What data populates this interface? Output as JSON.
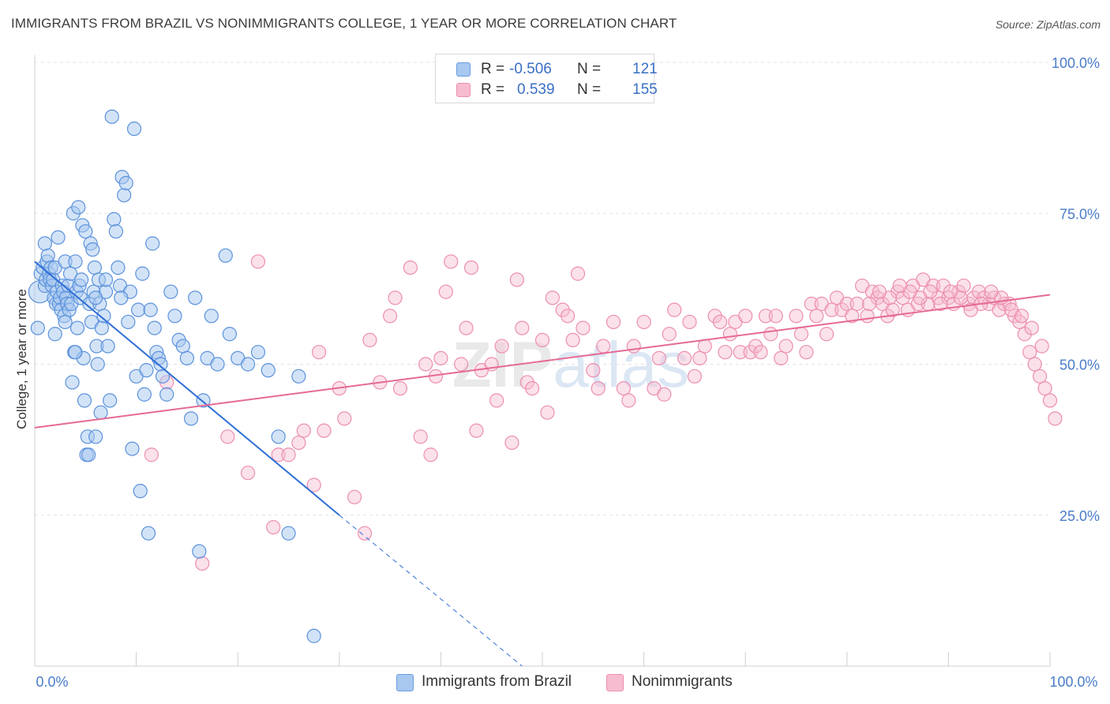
{
  "title": "IMMIGRANTS FROM BRAZIL VS NONIMMIGRANTS COLLEGE, 1 YEAR OR MORE CORRELATION CHART",
  "source": "Source: ZipAtlas.com",
  "watermark": "ZIPatlas",
  "legend_top": {
    "rows": [
      {
        "r_label": "R =",
        "r_value": "-0.506",
        "n_label": "N =",
        "n_value": "121",
        "color": "#a8c8f0",
        "border": "#6a9ee0"
      },
      {
        "r_label": "R =",
        "r_value": "0.539",
        "n_label": "N =",
        "n_value": "155",
        "color": "#f7bcd0",
        "border": "#ec8fb0"
      }
    ]
  },
  "legend_bottom": [
    {
      "label": "Immigrants from Brazil",
      "color": "#a8c8f0",
      "border": "#6a9ee0"
    },
    {
      "label": "Nonimmigrants",
      "color": "#f7bcd0",
      "border": "#ec8fb0"
    }
  ],
  "chart_data": {
    "type": "scatter",
    "xlabel": "",
    "ylabel": "College, 1 year or more",
    "xlim": [
      0,
      100
    ],
    "ylim": [
      0,
      100
    ],
    "x_tick_labels": [
      "0.0%",
      "100.0%"
    ],
    "y_tick_labels": [
      "100.0%",
      "75.0%",
      "50.0%",
      "25.0%"
    ],
    "y_tick_values": [
      100,
      75,
      50,
      25
    ],
    "grid": true,
    "colors": {
      "blue_fill": "#a8c8f0",
      "blue_stroke": "#5b92dc",
      "blue_line": "#2f6fd6",
      "pink_fill": "#f7bcd0",
      "pink_stroke": "#ec8fb0",
      "pink_line": "#e56a93",
      "tick": "#4a7cc9"
    },
    "series": [
      {
        "name": "Immigrants from Brazil",
        "trend": {
          "x0": 0,
          "y0": 67,
          "x1": 30,
          "y1": 25,
          "dash_x1": 48,
          "dash_y1": 0
        },
        "points": [
          [
            0.5,
            62
          ],
          [
            0.6,
            65
          ],
          [
            0.8,
            66
          ],
          [
            1.0,
            63
          ],
          [
            1.1,
            64
          ],
          [
            1.2,
            67
          ],
          [
            1.3,
            68
          ],
          [
            1.4,
            65
          ],
          [
            1.5,
            64
          ],
          [
            1.6,
            66
          ],
          [
            1.7,
            63
          ],
          [
            1.8,
            64
          ],
          [
            1.9,
            61
          ],
          [
            2.0,
            66
          ],
          [
            2.1,
            60
          ],
          [
            2.2,
            62
          ],
          [
            2.3,
            71
          ],
          [
            2.4,
            60
          ],
          [
            2.5,
            61
          ],
          [
            2.6,
            59
          ],
          [
            2.7,
            63
          ],
          [
            2.8,
            62
          ],
          [
            2.9,
            58
          ],
          [
            3.0,
            67
          ],
          [
            3.1,
            61
          ],
          [
            3.2,
            60
          ],
          [
            3.3,
            63
          ],
          [
            3.4,
            59
          ],
          [
            3.5,
            65
          ],
          [
            3.6,
            60
          ],
          [
            3.7,
            47
          ],
          [
            3.8,
            75
          ],
          [
            3.9,
            52
          ],
          [
            4.0,
            67
          ],
          [
            4.1,
            62
          ],
          [
            4.2,
            56
          ],
          [
            4.3,
            76
          ],
          [
            4.4,
            63
          ],
          [
            4.5,
            61
          ],
          [
            4.6,
            64
          ],
          [
            4.7,
            73
          ],
          [
            4.8,
            51
          ],
          [
            4.9,
            44
          ],
          [
            5.0,
            72
          ],
          [
            5.1,
            35
          ],
          [
            5.2,
            38
          ],
          [
            5.3,
            35
          ],
          [
            5.4,
            60
          ],
          [
            5.5,
            70
          ],
          [
            5.6,
            57
          ],
          [
            5.7,
            69
          ],
          [
            5.8,
            62
          ],
          [
            5.9,
            66
          ],
          [
            6.0,
            38
          ],
          [
            6.1,
            53
          ],
          [
            6.2,
            50
          ],
          [
            6.3,
            64
          ],
          [
            6.4,
            60
          ],
          [
            6.5,
            42
          ],
          [
            6.6,
            56
          ],
          [
            6.8,
            58
          ],
          [
            7.0,
            62
          ],
          [
            7.2,
            53
          ],
          [
            7.4,
            44
          ],
          [
            7.6,
            91
          ],
          [
            7.8,
            74
          ],
          [
            8.0,
            72
          ],
          [
            8.2,
            66
          ],
          [
            8.4,
            63
          ],
          [
            8.6,
            81
          ],
          [
            8.8,
            78
          ],
          [
            9.0,
            80
          ],
          [
            9.2,
            57
          ],
          [
            9.4,
            62
          ],
          [
            9.6,
            36
          ],
          [
            9.8,
            89
          ],
          [
            10.0,
            48
          ],
          [
            10.2,
            59
          ],
          [
            10.4,
            29
          ],
          [
            10.6,
            65
          ],
          [
            10.8,
            45
          ],
          [
            11.0,
            49
          ],
          [
            11.2,
            22
          ],
          [
            11.4,
            59
          ],
          [
            11.6,
            70
          ],
          [
            11.8,
            56
          ],
          [
            12.0,
            52
          ],
          [
            12.2,
            51
          ],
          [
            12.4,
            50
          ],
          [
            12.6,
            48
          ],
          [
            13.0,
            45
          ],
          [
            13.4,
            62
          ],
          [
            13.8,
            58
          ],
          [
            14.2,
            54
          ],
          [
            14.6,
            53
          ],
          [
            15.0,
            51
          ],
          [
            15.4,
            41
          ],
          [
            15.8,
            61
          ],
          [
            16.2,
            19
          ],
          [
            16.6,
            44
          ],
          [
            17.0,
            51
          ],
          [
            17.4,
            58
          ],
          [
            18.0,
            50
          ],
          [
            18.8,
            68
          ],
          [
            19.2,
            55
          ],
          [
            20.0,
            51
          ],
          [
            21.0,
            50
          ],
          [
            22.0,
            52
          ],
          [
            23.0,
            49
          ],
          [
            24.0,
            38
          ],
          [
            25.0,
            22
          ],
          [
            26.0,
            48
          ],
          [
            27.5,
            5
          ],
          [
            0.3,
            56
          ],
          [
            1.0,
            70
          ],
          [
            2.0,
            55
          ],
          [
            3.0,
            57
          ],
          [
            4.0,
            52
          ],
          [
            6.0,
            61
          ],
          [
            7.0,
            64
          ],
          [
            8.5,
            61
          ]
        ]
      },
      {
        "name": "Nonimmigrants",
        "trend": {
          "x0": 0,
          "y0": 39.5,
          "x1": 100,
          "y1": 61.5
        },
        "points": [
          [
            11.5,
            35
          ],
          [
            13,
            47
          ],
          [
            16.5,
            17
          ],
          [
            19,
            38
          ],
          [
            21,
            32
          ],
          [
            22,
            67
          ],
          [
            23.5,
            23
          ],
          [
            24,
            35
          ],
          [
            25,
            35
          ],
          [
            26,
            37
          ],
          [
            26.5,
            39
          ],
          [
            27.5,
            30
          ],
          [
            28,
            52
          ],
          [
            28.5,
            39
          ],
          [
            30,
            46
          ],
          [
            30.5,
            41
          ],
          [
            31.5,
            28
          ],
          [
            32.5,
            22
          ],
          [
            33,
            54
          ],
          [
            34,
            47
          ],
          [
            35,
            58
          ],
          [
            35.5,
            61
          ],
          [
            36,
            46
          ],
          [
            37,
            66
          ],
          [
            38,
            38
          ],
          [
            38.5,
            50
          ],
          [
            39,
            35
          ],
          [
            39.5,
            48
          ],
          [
            40,
            51
          ],
          [
            40.5,
            62
          ],
          [
            41,
            67
          ],
          [
            42,
            50
          ],
          [
            42.5,
            56
          ],
          [
            43,
            66
          ],
          [
            43.5,
            39
          ],
          [
            44,
            49
          ],
          [
            45,
            50
          ],
          [
            45.5,
            44
          ],
          [
            46,
            53
          ],
          [
            47,
            37
          ],
          [
            47.5,
            64
          ],
          [
            48,
            56
          ],
          [
            48.5,
            47
          ],
          [
            49,
            46
          ],
          [
            50,
            54
          ],
          [
            50.5,
            42
          ],
          [
            51,
            61
          ],
          [
            52,
            59
          ],
          [
            52.5,
            58
          ],
          [
            53,
            54
          ],
          [
            53.5,
            65
          ],
          [
            54,
            56
          ],
          [
            55,
            49
          ],
          [
            55.5,
            46
          ],
          [
            56,
            53
          ],
          [
            57,
            57
          ],
          [
            58,
            46
          ],
          [
            58.5,
            44
          ],
          [
            59,
            53
          ],
          [
            60,
            57
          ],
          [
            61,
            46
          ],
          [
            61.5,
            51
          ],
          [
            62,
            45
          ],
          [
            62.5,
            55
          ],
          [
            63,
            59
          ],
          [
            64,
            51
          ],
          [
            64.5,
            57
          ],
          [
            65,
            48
          ],
          [
            65.5,
            51
          ],
          [
            66,
            53
          ],
          [
            67,
            58
          ],
          [
            67.5,
            57
          ],
          [
            68,
            52
          ],
          [
            68.5,
            55
          ],
          [
            69,
            57
          ],
          [
            69.5,
            52
          ],
          [
            70,
            58
          ],
          [
            70.5,
            52
          ],
          [
            71,
            53
          ],
          [
            71.5,
            52
          ],
          [
            72,
            58
          ],
          [
            72.5,
            55
          ],
          [
            73,
            58
          ],
          [
            73.5,
            51
          ],
          [
            74,
            53
          ],
          [
            75,
            58
          ],
          [
            75.5,
            55
          ],
          [
            76,
            52
          ],
          [
            76.5,
            60
          ],
          [
            77,
            58
          ],
          [
            77.5,
            60
          ],
          [
            78,
            55
          ],
          [
            78.5,
            59
          ],
          [
            79,
            61
          ],
          [
            79.5,
            59
          ],
          [
            80,
            60
          ],
          [
            80.5,
            58
          ],
          [
            81,
            60
          ],
          [
            81.5,
            63
          ],
          [
            82,
            58
          ],
          [
            82.5,
            62
          ],
          [
            83,
            61
          ],
          [
            83.5,
            60
          ],
          [
            84,
            58
          ],
          [
            84.5,
            59
          ],
          [
            85,
            62
          ],
          [
            85.5,
            61
          ],
          [
            86,
            59
          ],
          [
            86.5,
            63
          ],
          [
            87,
            60
          ],
          [
            87.5,
            64
          ],
          [
            88,
            60
          ],
          [
            88.5,
            63
          ],
          [
            89,
            61
          ],
          [
            89.5,
            63
          ],
          [
            90,
            61
          ],
          [
            90.5,
            60
          ],
          [
            91,
            62
          ],
          [
            91.5,
            63
          ],
          [
            92,
            60
          ],
          [
            92.5,
            61
          ],
          [
            93,
            62
          ],
          [
            93.5,
            61
          ],
          [
            94,
            60
          ],
          [
            94.5,
            61
          ],
          [
            95,
            59
          ],
          [
            95.5,
            60
          ],
          [
            96,
            60
          ],
          [
            96.5,
            58
          ],
          [
            97,
            57
          ],
          [
            97.5,
            55
          ],
          [
            98,
            52
          ],
          [
            98.5,
            50
          ],
          [
            99,
            48
          ],
          [
            99.5,
            46
          ],
          [
            100,
            44
          ],
          [
            100.5,
            41
          ],
          [
            99.2,
            53
          ],
          [
            98.2,
            56
          ],
          [
            97.2,
            58
          ],
          [
            96.2,
            59
          ],
          [
            95.2,
            61
          ],
          [
            94.2,
            62
          ],
          [
            93.2,
            60
          ],
          [
            92.2,
            59
          ],
          [
            91.2,
            61
          ],
          [
            90.2,
            62
          ],
          [
            89.2,
            60
          ],
          [
            88.2,
            62
          ],
          [
            87.2,
            61
          ],
          [
            86.2,
            62
          ],
          [
            85.2,
            63
          ],
          [
            84.2,
            61
          ],
          [
            83.2,
            62
          ],
          [
            82.2,
            60
          ]
        ]
      }
    ]
  }
}
